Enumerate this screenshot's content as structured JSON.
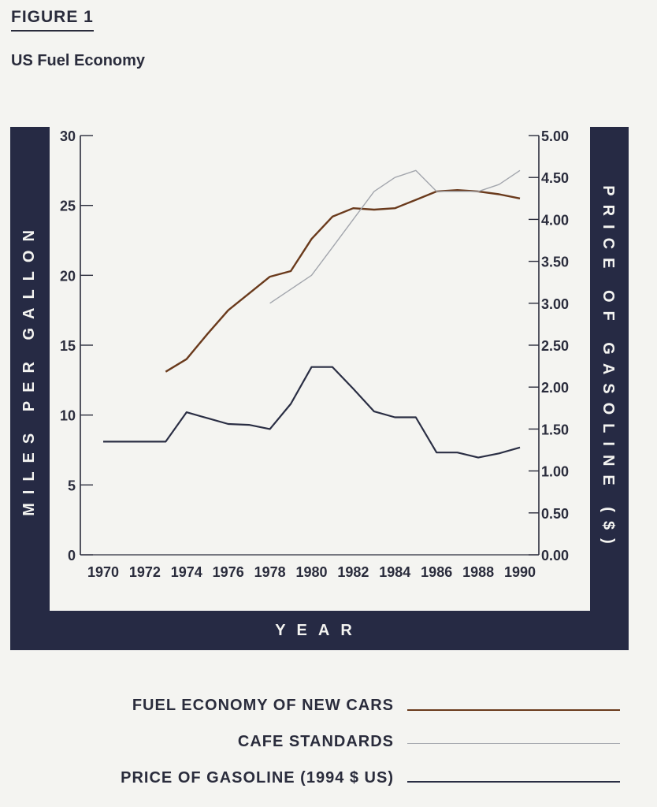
{
  "figure_label": "FIGURE 1",
  "title": "US Fuel Economy",
  "colors": {
    "frame": "#262a44",
    "fuel_economy": "#6a3a1c",
    "cafe": "#a3a6ad",
    "gas_price": "#2a2e44"
  },
  "chart_data": {
    "type": "line",
    "title": "US Fuel Economy",
    "xlabel": "YEAR",
    "ylabel": "MILES PER GALLON",
    "y2label": "PRICE OF GASOLINE ($)",
    "xlim": [
      1970,
      1990
    ],
    "ylim": [
      0,
      30
    ],
    "y2lim": [
      0,
      5
    ],
    "x_ticks": [
      "1970",
      "1972",
      "1974",
      "1976",
      "1978",
      "1980",
      "1982",
      "1984",
      "1986",
      "1988",
      "1990"
    ],
    "y_ticks": [
      "0",
      "5",
      "10",
      "15",
      "20",
      "25",
      "30"
    ],
    "y2_ticks": [
      "0.00",
      "0.50",
      "1.00",
      "1.50",
      "2.00",
      "2.50",
      "3.00",
      "3.50",
      "4.00",
      "4.50",
      "5.00"
    ],
    "grid": false,
    "series": [
      {
        "name": "FUEL ECONOMY OF NEW CARS",
        "axis": "left",
        "x": [
          1973,
          1974,
          1975,
          1976,
          1977,
          1978,
          1979,
          1980,
          1981,
          1982,
          1983,
          1984,
          1985,
          1986,
          1987,
          1988,
          1989,
          1990
        ],
        "values": [
          13.1,
          14.0,
          15.8,
          17.5,
          18.7,
          19.9,
          20.3,
          22.6,
          24.2,
          24.8,
          24.7,
          24.8,
          25.4,
          26.0,
          26.1,
          26.0,
          25.8,
          25.5
        ]
      },
      {
        "name": "CAFE STANDARDS",
        "axis": "left",
        "x": [
          1978,
          1979,
          1980,
          1981,
          1982,
          1983,
          1984,
          1985,
          1986,
          1987,
          1988,
          1989,
          1990
        ],
        "values": [
          18.0,
          19.0,
          20.0,
          22.0,
          24.0,
          26.0,
          27.0,
          27.5,
          26.0,
          26.0,
          26.0,
          26.5,
          27.5
        ]
      },
      {
        "name": "PRICE OF GASOLINE (1994 $ US)",
        "axis": "right",
        "x": [
          1970,
          1971,
          1972,
          1973,
          1974,
          1975,
          1976,
          1977,
          1978,
          1979,
          1980,
          1981,
          1982,
          1983,
          1984,
          1985,
          1986,
          1987,
          1988,
          1989,
          1990
        ],
        "values": [
          1.35,
          1.35,
          1.35,
          1.35,
          1.7,
          1.63,
          1.56,
          1.55,
          1.5,
          1.8,
          2.24,
          2.24,
          1.98,
          1.71,
          1.64,
          1.64,
          1.22,
          1.22,
          1.16,
          1.21,
          1.28
        ]
      }
    ]
  }
}
